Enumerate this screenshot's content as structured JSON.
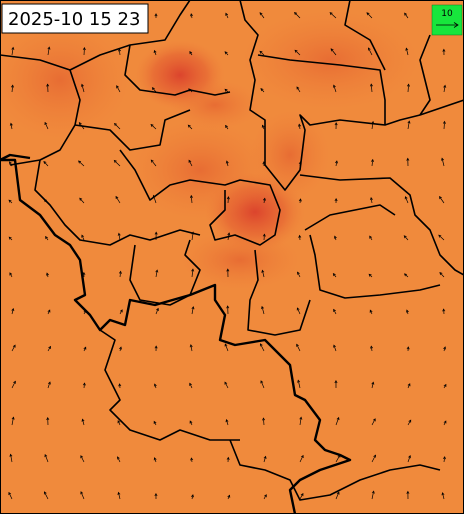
{
  "timestamp": "2025-10 15 23",
  "legend": {
    "label": "10"
  }
}
